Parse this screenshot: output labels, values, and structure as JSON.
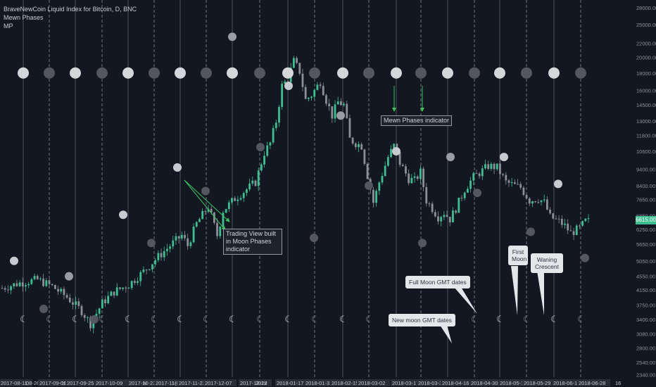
{
  "header": {
    "title": "BraveNewCoin Liquid Index for Bitcoin, D, BNC",
    "indicator1": "Mewn Phases",
    "indicator2": "MP"
  },
  "annotations": {
    "tv_moon": "Trading View built in Moon Phases indicator",
    "mewn": "Mewn Phases indicator",
    "full_moon_dates": "Full Moon GMT dates",
    "new_moon_dates": "New moon GMT dates",
    "first_moon": "First Moon",
    "waning_crescent": "Waning Crescent"
  },
  "last_price": "6615.00",
  "colors": {
    "up": "#3fbf8f",
    "down": "#8c8f96",
    "background": "#131722",
    "grid": "#2a2e39"
  },
  "chart_data": {
    "type": "candlestick",
    "title": "BraveNewCoin Liquid Index for Bitcoin, D, BNC",
    "y_ticks": [
      "28000.00",
      "25000.00",
      "22000.00",
      "20000.00",
      "18000.00",
      "16000.00",
      "14500.00",
      "13000.00",
      "11800.00",
      "10600.00",
      "9400.00",
      "8400.00",
      "7650.00",
      "6850.00",
      "6250.00",
      "5650.00",
      "5050.00",
      "4550.00",
      "4150.00",
      "3750.00",
      "3400.00",
      "3080.00",
      "2800.00",
      "2540.00",
      "2340.00"
    ],
    "x_ticks": [
      "2017-08-11",
      "08-26",
      "2017-09-09",
      "16",
      "2017-09-25",
      "2017-10-09",
      "2017-10-23",
      "N",
      "2017-11-07",
      "1(",
      "2017-11-23",
      "2017-12-07",
      "2017-12-22",
      "2018",
      "2018-01-17",
      "2018-01-31",
      "2018-02-15",
      "2018-03-02",
      "2018-03-17",
      "2018-03-31",
      "2018-04-16",
      "2018-04-30",
      "2018-05-15",
      "2018-05-29",
      "2018-06-13",
      "2018-06-28",
      "16"
    ],
    "price_path": [
      [
        0,
        4200
      ],
      [
        6,
        4350
      ],
      [
        12,
        4450
      ],
      [
        17,
        4250
      ],
      [
        22,
        3950
      ],
      [
        27,
        3600
      ],
      [
        30,
        3300
      ],
      [
        34,
        3800
      ],
      [
        38,
        4100
      ],
      [
        43,
        4300
      ],
      [
        48,
        4700
      ],
      [
        53,
        5200
      ],
      [
        58,
        5700
      ],
      [
        61,
        6000
      ],
      [
        63,
        5600
      ],
      [
        66,
        6500
      ],
      [
        70,
        7300
      ],
      [
        73,
        6000
      ],
      [
        75,
        7100
      ],
      [
        79,
        7700
      ],
      [
        83,
        8200
      ],
      [
        86,
        8600
      ],
      [
        89,
        10500
      ],
      [
        91,
        11200
      ],
      [
        93,
        13000
      ],
      [
        95,
        16500
      ],
      [
        97,
        17300
      ],
      [
        99,
        19500
      ],
      [
        101,
        18200
      ],
      [
        103,
        15000
      ],
      [
        105,
        15500
      ],
      [
        108,
        17000
      ],
      [
        110,
        15000
      ],
      [
        112,
        13500
      ],
      [
        114,
        14800
      ],
      [
        116,
        14500
      ],
      [
        118,
        11500
      ],
      [
        120,
        11200
      ],
      [
        122,
        11000
      ],
      [
        124,
        9000
      ],
      [
        126,
        7500
      ],
      [
        128,
        8600
      ],
      [
        131,
        10200
      ],
      [
        133,
        11000
      ],
      [
        135,
        9800
      ],
      [
        138,
        8800
      ],
      [
        140,
        8700
      ],
      [
        142,
        9200
      ],
      [
        144,
        7600
      ],
      [
        146,
        7200
      ],
      [
        148,
        6800
      ],
      [
        150,
        7000
      ],
      [
        152,
        6700
      ],
      [
        154,
        7200
      ],
      [
        157,
        8200
      ],
      [
        160,
        8900
      ],
      [
        163,
        9300
      ],
      [
        165,
        9600
      ],
      [
        168,
        9500
      ],
      [
        171,
        8600
      ],
      [
        174,
        8400
      ],
      [
        176,
        8300
      ],
      [
        179,
        7600
      ],
      [
        182,
        7700
      ],
      [
        184,
        7500
      ],
      [
        186,
        6800
      ],
      [
        189,
        6600
      ],
      [
        191,
        6400
      ],
      [
        193,
        6100
      ],
      [
        196,
        6300
      ],
      [
        198,
        6600
      ]
    ],
    "price_scale": "log",
    "ylim": [
      2300,
      29500
    ]
  }
}
